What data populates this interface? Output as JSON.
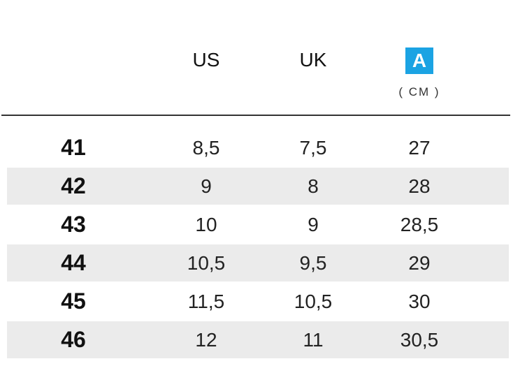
{
  "header": {
    "columns": [
      "US",
      "UK",
      "A"
    ],
    "unit": "( CM )"
  },
  "table": {
    "rows": [
      [
        "41",
        "8,5",
        "7,5",
        "27"
      ],
      [
        "42",
        "9",
        "8",
        "28"
      ],
      [
        "43",
        "10",
        "9",
        "28,5"
      ],
      [
        "44",
        "10,5",
        "9,5",
        "29"
      ],
      [
        "45",
        "11,5",
        "10,5",
        "30"
      ],
      [
        "46",
        "12",
        "11",
        "30,5"
      ]
    ]
  }
}
